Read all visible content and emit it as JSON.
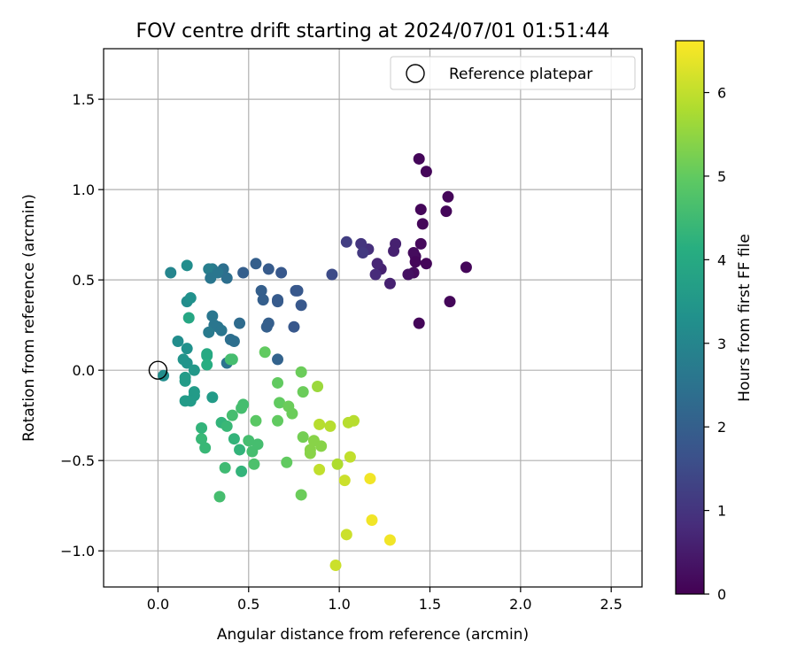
{
  "chart_data": {
    "type": "scatter",
    "title": "FOV centre drift starting at 2024/07/01 01:51:44",
    "xlabel": "Angular distance from reference (arcmin)",
    "ylabel": "Rotation from reference (arcmin)",
    "xlim": [
      -0.3,
      2.67
    ],
    "ylim": [
      -1.2,
      1.78
    ],
    "xticks": [
      0.0,
      0.5,
      1.0,
      1.5,
      2.0,
      2.5
    ],
    "xtick_labels": [
      "0.0",
      "0.5",
      "1.0",
      "1.5",
      "2.0",
      "2.5"
    ],
    "yticks": [
      -1.0,
      -0.5,
      0.0,
      0.5,
      1.0,
      1.5
    ],
    "ytick_labels": [
      "−1.0",
      "−0.5",
      "0.0",
      "0.5",
      "1.0",
      "1.5"
    ],
    "grid": true,
    "legend": {
      "placement": "top-right",
      "entries": [
        {
          "label": "Reference platepar",
          "marker": "open-circle"
        }
      ]
    },
    "reference_point": {
      "x": 0.0,
      "y": 0.0
    },
    "colorbar": {
      "label": "Hours from first FF file",
      "colormap": "viridis",
      "range": [
        0,
        6.62
      ],
      "ticks": [
        0,
        1,
        2,
        3,
        4,
        5,
        6
      ],
      "tick_labels": [
        "0",
        "1",
        "2",
        "3",
        "4",
        "5",
        "6"
      ]
    },
    "points": [
      {
        "x": 1.44,
        "y": 1.17,
        "c": 0.1
      },
      {
        "x": 1.48,
        "y": 1.1,
        "c": 0.1
      },
      {
        "x": 1.6,
        "y": 0.96,
        "c": 0.1
      },
      {
        "x": 1.45,
        "y": 0.89,
        "c": 0.1
      },
      {
        "x": 1.59,
        "y": 0.88,
        "c": 0.1
      },
      {
        "x": 1.46,
        "y": 0.81,
        "c": 0.1
      },
      {
        "x": 1.45,
        "y": 0.7,
        "c": 0.15
      },
      {
        "x": 1.41,
        "y": 0.65,
        "c": 0.2
      },
      {
        "x": 1.42,
        "y": 0.63,
        "c": 0.2
      },
      {
        "x": 1.42,
        "y": 0.6,
        "c": 0.1
      },
      {
        "x": 1.48,
        "y": 0.59,
        "c": 0.1
      },
      {
        "x": 1.7,
        "y": 0.57,
        "c": 0.1
      },
      {
        "x": 1.41,
        "y": 0.54,
        "c": 0.2
      },
      {
        "x": 1.38,
        "y": 0.53,
        "c": 0.3
      },
      {
        "x": 1.61,
        "y": 0.38,
        "c": 0.1
      },
      {
        "x": 1.44,
        "y": 0.26,
        "c": 0.1
      },
      {
        "x": 1.31,
        "y": 0.7,
        "c": 0.6
      },
      {
        "x": 1.3,
        "y": 0.66,
        "c": 0.6
      },
      {
        "x": 1.23,
        "y": 0.56,
        "c": 0.6
      },
      {
        "x": 1.28,
        "y": 0.48,
        "c": 0.6
      },
      {
        "x": 1.21,
        "y": 0.59,
        "c": 0.7
      },
      {
        "x": 1.2,
        "y": 0.53,
        "c": 0.8
      },
      {
        "x": 1.16,
        "y": 0.67,
        "c": 0.9
      },
      {
        "x": 1.12,
        "y": 0.7,
        "c": 1.0
      },
      {
        "x": 1.13,
        "y": 0.65,
        "c": 1.1
      },
      {
        "x": 1.04,
        "y": 0.71,
        "c": 1.2
      },
      {
        "x": 0.96,
        "y": 0.53,
        "c": 1.5
      },
      {
        "x": 0.54,
        "y": 0.59,
        "c": 2.0
      },
      {
        "x": 0.61,
        "y": 0.56,
        "c": 1.9
      },
      {
        "x": 0.68,
        "y": 0.54,
        "c": 1.8
      },
      {
        "x": 0.47,
        "y": 0.54,
        "c": 2.0
      },
      {
        "x": 0.57,
        "y": 0.44,
        "c": 2.0
      },
      {
        "x": 0.58,
        "y": 0.39,
        "c": 2.0
      },
      {
        "x": 0.66,
        "y": 0.39,
        "c": 1.9
      },
      {
        "x": 0.66,
        "y": 0.38,
        "c": 1.9
      },
      {
        "x": 0.76,
        "y": 0.44,
        "c": 1.8
      },
      {
        "x": 0.77,
        "y": 0.44,
        "c": 1.8
      },
      {
        "x": 0.79,
        "y": 0.36,
        "c": 1.8
      },
      {
        "x": 0.61,
        "y": 0.26,
        "c": 2.0
      },
      {
        "x": 0.6,
        "y": 0.24,
        "c": 2.0
      },
      {
        "x": 0.75,
        "y": 0.24,
        "c": 1.8
      },
      {
        "x": 0.66,
        "y": 0.06,
        "c": 2.1
      },
      {
        "x": 0.36,
        "y": 0.56,
        "c": 2.4
      },
      {
        "x": 0.3,
        "y": 0.56,
        "c": 2.7
      },
      {
        "x": 0.28,
        "y": 0.56,
        "c": 2.8
      },
      {
        "x": 0.33,
        "y": 0.54,
        "c": 2.6
      },
      {
        "x": 0.29,
        "y": 0.51,
        "c": 2.6
      },
      {
        "x": 0.38,
        "y": 0.51,
        "c": 2.4
      },
      {
        "x": 0.45,
        "y": 0.26,
        "c": 2.3
      },
      {
        "x": 0.3,
        "y": 0.3,
        "c": 2.6
      },
      {
        "x": 0.31,
        "y": 0.25,
        "c": 2.6
      },
      {
        "x": 0.33,
        "y": 0.24,
        "c": 2.6
      },
      {
        "x": 0.35,
        "y": 0.22,
        "c": 2.6
      },
      {
        "x": 0.28,
        "y": 0.21,
        "c": 2.7
      },
      {
        "x": 0.4,
        "y": 0.17,
        "c": 2.4
      },
      {
        "x": 0.42,
        "y": 0.16,
        "c": 2.4
      },
      {
        "x": 0.38,
        "y": 0.04,
        "c": 2.5
      },
      {
        "x": 0.07,
        "y": 0.54,
        "c": 3.0
      },
      {
        "x": 0.16,
        "y": 0.58,
        "c": 3.2
      },
      {
        "x": 0.16,
        "y": 0.38,
        "c": 3.2
      },
      {
        "x": 0.18,
        "y": 0.4,
        "c": 3.3
      },
      {
        "x": 0.11,
        "y": 0.16,
        "c": 3.2
      },
      {
        "x": 0.16,
        "y": 0.12,
        "c": 3.3
      },
      {
        "x": 0.14,
        "y": 0.06,
        "c": 3.4
      },
      {
        "x": 0.16,
        "y": 0.04,
        "c": 3.4
      },
      {
        "x": 0.2,
        "y": 0.0,
        "c": 3.5
      },
      {
        "x": 0.03,
        "y": -0.03,
        "c": 3.2
      },
      {
        "x": 0.15,
        "y": -0.04,
        "c": 3.6
      },
      {
        "x": 0.15,
        "y": -0.06,
        "c": 3.6
      },
      {
        "x": 0.2,
        "y": -0.12,
        "c": 3.6
      },
      {
        "x": 0.2,
        "y": -0.14,
        "c": 3.6
      },
      {
        "x": 0.15,
        "y": -0.17,
        "c": 3.6
      },
      {
        "x": 0.18,
        "y": -0.17,
        "c": 3.6
      },
      {
        "x": 0.3,
        "y": -0.15,
        "c": 3.6
      },
      {
        "x": 0.17,
        "y": 0.29,
        "c": 3.9
      },
      {
        "x": 0.27,
        "y": 0.09,
        "c": 4.0
      },
      {
        "x": 0.27,
        "y": 0.08,
        "c": 4.0
      },
      {
        "x": 0.27,
        "y": 0.03,
        "c": 4.1
      },
      {
        "x": 0.4,
        "y": 0.06,
        "c": 4.6
      },
      {
        "x": 0.41,
        "y": 0.06,
        "c": 4.6
      },
      {
        "x": 0.24,
        "y": -0.32,
        "c": 4.3
      },
      {
        "x": 0.24,
        "y": -0.38,
        "c": 4.4
      },
      {
        "x": 0.26,
        "y": -0.43,
        "c": 4.4
      },
      {
        "x": 0.35,
        "y": -0.29,
        "c": 4.3
      },
      {
        "x": 0.38,
        "y": -0.31,
        "c": 4.4
      },
      {
        "x": 0.41,
        "y": -0.25,
        "c": 4.6
      },
      {
        "x": 0.46,
        "y": -0.21,
        "c": 4.6
      },
      {
        "x": 0.47,
        "y": -0.19,
        "c": 4.6
      },
      {
        "x": 0.42,
        "y": -0.38,
        "c": 4.3
      },
      {
        "x": 0.45,
        "y": -0.44,
        "c": 4.3
      },
      {
        "x": 0.46,
        "y": -0.56,
        "c": 4.3
      },
      {
        "x": 0.37,
        "y": -0.54,
        "c": 4.5
      },
      {
        "x": 0.34,
        "y": -0.7,
        "c": 4.6
      },
      {
        "x": 0.5,
        "y": -0.39,
        "c": 4.6
      },
      {
        "x": 0.52,
        "y": -0.45,
        "c": 4.6
      },
      {
        "x": 0.55,
        "y": -0.41,
        "c": 4.6
      },
      {
        "x": 0.53,
        "y": -0.52,
        "c": 4.7
      },
      {
        "x": 0.54,
        "y": -0.28,
        "c": 4.9
      },
      {
        "x": 0.59,
        "y": 0.1,
        "c": 5.0
      },
      {
        "x": 0.66,
        "y": -0.07,
        "c": 5.0
      },
      {
        "x": 0.67,
        "y": -0.18,
        "c": 5.0
      },
      {
        "x": 0.66,
        "y": -0.28,
        "c": 5.0
      },
      {
        "x": 0.72,
        "y": -0.2,
        "c": 5.1
      },
      {
        "x": 0.74,
        "y": -0.24,
        "c": 5.1
      },
      {
        "x": 0.71,
        "y": -0.51,
        "c": 5.0
      },
      {
        "x": 0.79,
        "y": -0.01,
        "c": 5.1
      },
      {
        "x": 0.8,
        "y": -0.12,
        "c": 5.1
      },
      {
        "x": 0.8,
        "y": -0.37,
        "c": 5.2
      },
      {
        "x": 0.79,
        "y": -0.69,
        "c": 5.1
      },
      {
        "x": 0.84,
        "y": -0.44,
        "c": 5.4
      },
      {
        "x": 0.84,
        "y": -0.46,
        "c": 5.4
      },
      {
        "x": 0.86,
        "y": -0.39,
        "c": 5.4
      },
      {
        "x": 0.9,
        "y": -0.42,
        "c": 5.4
      },
      {
        "x": 0.88,
        "y": -0.09,
        "c": 5.6
      },
      {
        "x": 0.89,
        "y": -0.3,
        "c": 5.9
      },
      {
        "x": 0.95,
        "y": -0.31,
        "c": 5.9
      },
      {
        "x": 0.89,
        "y": -0.55,
        "c": 6.0
      },
      {
        "x": 0.99,
        "y": -0.52,
        "c": 5.8
      },
      {
        "x": 1.05,
        "y": -0.29,
        "c": 5.9
      },
      {
        "x": 1.08,
        "y": -0.28,
        "c": 5.9
      },
      {
        "x": 1.06,
        "y": -0.48,
        "c": 6.0
      },
      {
        "x": 1.03,
        "y": -0.61,
        "c": 6.1
      },
      {
        "x": 1.04,
        "y": -0.91,
        "c": 6.1
      },
      {
        "x": 0.98,
        "y": -1.08,
        "c": 6.1
      },
      {
        "x": 1.17,
        "y": -0.6,
        "c": 6.5
      },
      {
        "x": 1.18,
        "y": -0.83,
        "c": 6.5
      },
      {
        "x": 1.28,
        "y": -0.94,
        "c": 6.5
      }
    ]
  }
}
